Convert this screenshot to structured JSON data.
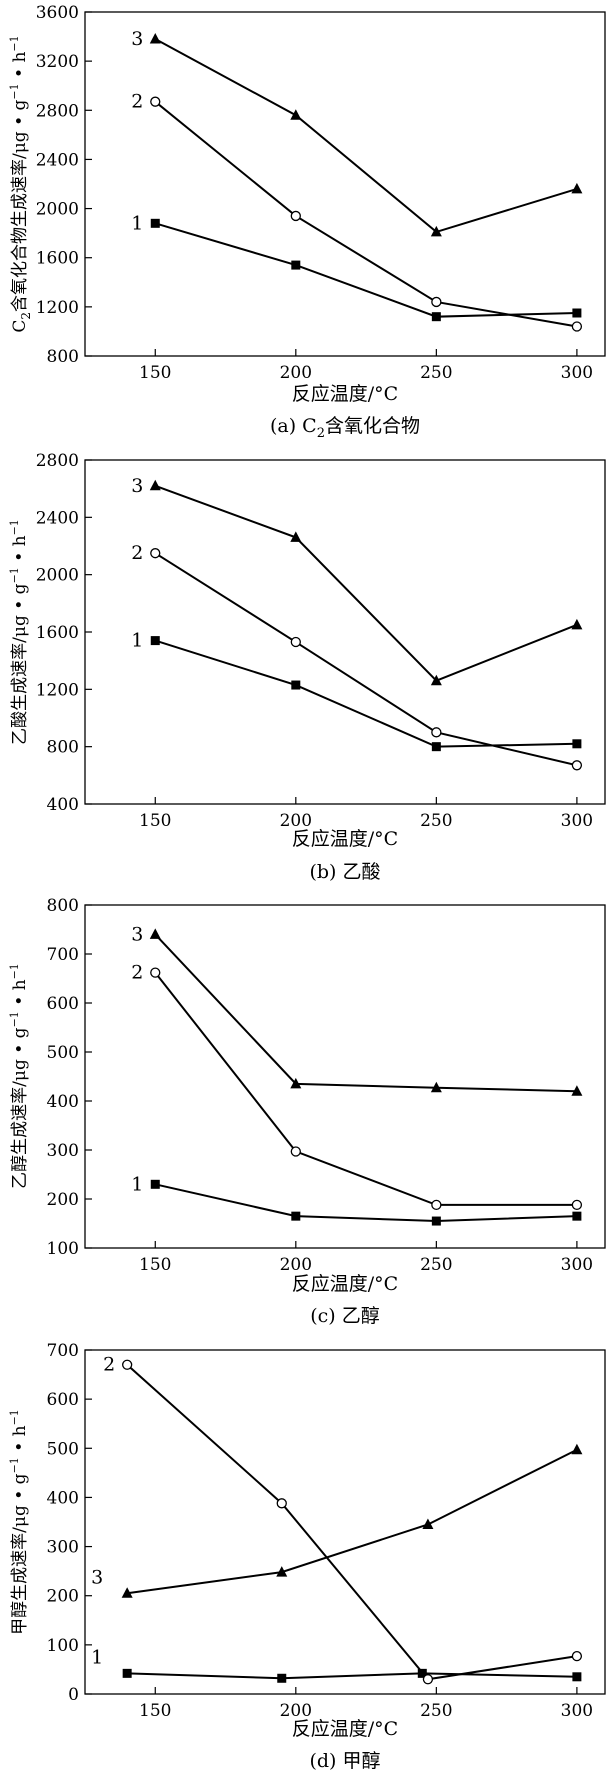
{
  "chart_data": [
    {
      "type": "line",
      "caption_prefix": "(a) C",
      "caption_sub": "2",
      "caption_suffix": "含氧化合物",
      "ylabel_prefix": "C",
      "ylabel_sub": "2",
      "ylabel_main": "含氧化合物生成速率/μg • g",
      "ylabel_sup1": "−1",
      "ylabel_mid": " • h",
      "ylabel_sup2": "−1",
      "xlabel": "反应温度/°C",
      "xlim": [
        125,
        310
      ],
      "ylim": [
        800,
        3600
      ],
      "x_ticks": [
        150,
        200,
        250,
        300
      ],
      "y_ticks": [
        800,
        1200,
        1600,
        2000,
        2400,
        2800,
        3200,
        3600
      ],
      "series": [
        {
          "name": "1",
          "marker": "square",
          "x": [
            150,
            200,
            250,
            300
          ],
          "values": [
            1880,
            1540,
            1120,
            1150
          ]
        },
        {
          "name": "2",
          "marker": "circle",
          "x": [
            150,
            200,
            250,
            300
          ],
          "values": [
            2870,
            1940,
            1240,
            1040
          ]
        },
        {
          "name": "3",
          "marker": "triangle",
          "x": [
            150,
            200,
            250,
            300
          ],
          "values": [
            3380,
            2760,
            1810,
            2160
          ]
        }
      ]
    },
    {
      "type": "line",
      "caption": "(b) 乙酸",
      "ylabel_main": "乙酸生成速率/μg • g",
      "ylabel_sup1": "−1",
      "ylabel_mid": " • h",
      "ylabel_sup2": "−1",
      "xlabel": "反应温度/°C",
      "xlim": [
        125,
        310
      ],
      "ylim": [
        400,
        2800
      ],
      "x_ticks": [
        150,
        200,
        250,
        300
      ],
      "y_ticks": [
        400,
        800,
        1200,
        1600,
        2000,
        2400,
        2800
      ],
      "series": [
        {
          "name": "1",
          "marker": "square",
          "x": [
            150,
            200,
            250,
            300
          ],
          "values": [
            1540,
            1230,
            800,
            820
          ]
        },
        {
          "name": "2",
          "marker": "circle",
          "x": [
            150,
            200,
            250,
            300
          ],
          "values": [
            2150,
            1530,
            900,
            670
          ]
        },
        {
          "name": "3",
          "marker": "triangle",
          "x": [
            150,
            200,
            250,
            300
          ],
          "values": [
            2620,
            2260,
            1260,
            1650
          ]
        }
      ]
    },
    {
      "type": "line",
      "caption": "(c) 乙醇",
      "ylabel_main": "乙醇生成速率/μg • g",
      "ylabel_sup1": "−1",
      "ylabel_mid": " • h",
      "ylabel_sup2": "−1",
      "xlabel": "反应温度/°C",
      "xlim": [
        125,
        310
      ],
      "ylim": [
        100,
        800
      ],
      "x_ticks": [
        150,
        200,
        250,
        300
      ],
      "y_ticks": [
        100,
        200,
        300,
        400,
        500,
        600,
        700,
        800
      ],
      "series": [
        {
          "name": "1",
          "marker": "square",
          "x": [
            150,
            200,
            250,
            300
          ],
          "values": [
            230,
            165,
            155,
            165
          ]
        },
        {
          "name": "2",
          "marker": "circle",
          "x": [
            150,
            200,
            250,
            300
          ],
          "values": [
            662,
            297,
            188,
            188
          ]
        },
        {
          "name": "3",
          "marker": "triangle",
          "x": [
            150,
            200,
            250,
            300
          ],
          "values": [
            740,
            435,
            427,
            420
          ]
        }
      ]
    },
    {
      "type": "line",
      "caption": "(d) 甲醇",
      "ylabel_main": "甲醇生成速率/μg • g",
      "ylabel_sup1": "−1",
      "ylabel_mid": " • h",
      "ylabel_sup2": "−1",
      "xlabel": "反应温度/°C",
      "xlim": [
        125,
        310
      ],
      "ylim": [
        0,
        700
      ],
      "x_ticks": [
        150,
        200,
        250,
        300
      ],
      "y_ticks": [
        0,
        100,
        200,
        300,
        400,
        500,
        600,
        700
      ],
      "series": [
        {
          "name": "1",
          "marker": "square",
          "x": [
            140,
            195,
            245,
            300
          ],
          "values": [
            42,
            32,
            42,
            35
          ]
        },
        {
          "name": "2",
          "marker": "circle",
          "x": [
            140,
            195,
            247,
            300
          ],
          "values": [
            670,
            388,
            30,
            77
          ]
        },
        {
          "name": "3",
          "marker": "triangle",
          "x": [
            140,
            195,
            247,
            300
          ],
          "values": [
            205,
            248,
            345,
            497
          ]
        }
      ]
    }
  ]
}
